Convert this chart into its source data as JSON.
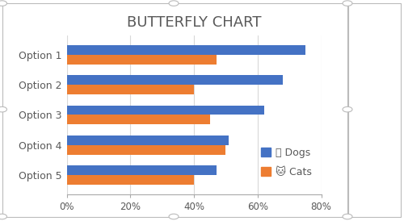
{
  "title": "BUTTERFLY CHART",
  "categories": [
    "Option 1",
    "Option 2",
    "Option 3",
    "Option 4",
    "Option 5"
  ],
  "dogs": [
    0.75,
    0.68,
    0.62,
    0.51,
    0.47
  ],
  "cats": [
    0.47,
    0.4,
    0.45,
    0.5,
    0.4
  ],
  "dogs_color": "#4472C4",
  "cats_color": "#ED7D31",
  "xlim": [
    0,
    0.8
  ],
  "xticks": [
    0,
    0.2,
    0.4,
    0.6,
    0.8
  ],
  "xtick_labels": [
    "0%",
    "20%",
    "40%",
    "60%",
    "80%"
  ],
  "legend_dogs": "Dogs",
  "legend_cats": "Cats",
  "bar_height": 0.32,
  "title_fontsize": 13,
  "label_fontsize": 9,
  "tick_fontsize": 8.5,
  "legend_fontsize": 9,
  "background_color": "#FFFFFF",
  "border_color": "#AAAAAA",
  "grid_color": "#D9D9D9",
  "title_color": "#595959",
  "label_color": "#595959"
}
